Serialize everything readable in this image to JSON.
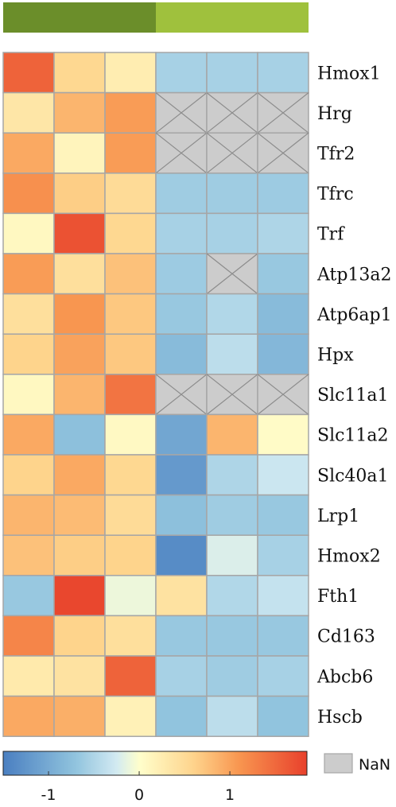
{
  "chart_data": {
    "type": "heatmap",
    "column_groups": [
      {
        "columns": [
          0,
          1,
          2
        ],
        "color": "#6b8e2a"
      },
      {
        "columns": [
          3,
          4,
          5
        ],
        "color": "#9fc13d"
      }
    ],
    "rows": [
      "Hmox1",
      "Hrg",
      "Tfr2",
      "Tfrc",
      "Trf",
      "Atp13a2",
      "Atp6ap1",
      "Hpx",
      "Slc11a1",
      "Slc11a2",
      "Slc40a1",
      "Lrp1",
      "Hmox2",
      "Fth1",
      "Cd163",
      "Abcb6",
      "Hscb"
    ],
    "values": [
      [
        1.55,
        0.55,
        0.25,
        -0.55,
        -0.55,
        -0.55
      ],
      [
        0.35,
        0.85,
        1.05,
        null,
        null,
        null
      ],
      [
        0.95,
        0.15,
        1.05,
        null,
        null,
        null
      ],
      [
        1.15,
        0.65,
        0.5,
        -0.6,
        -0.6,
        -0.62
      ],
      [
        0.1,
        1.7,
        0.55,
        -0.55,
        -0.55,
        -0.5
      ],
      [
        1.05,
        0.45,
        0.75,
        -0.62,
        null,
        -0.65
      ],
      [
        0.45,
        1.1,
        0.7,
        -0.65,
        -0.48,
        -0.8
      ],
      [
        0.6,
        1.0,
        0.7,
        -0.8,
        -0.4,
        -0.85
      ],
      [
        0.1,
        0.85,
        1.4,
        null,
        null,
        null
      ],
      [
        0.95,
        -0.75,
        0.08,
        -1.05,
        0.85,
        0.05
      ],
      [
        0.6,
        0.95,
        0.55,
        -1.2,
        -0.5,
        -0.3
      ],
      [
        0.85,
        0.8,
        0.5,
        -0.75,
        -0.6,
        -0.65
      ],
      [
        0.75,
        0.65,
        0.6,
        -1.35,
        -0.2,
        -0.55
      ],
      [
        -0.65,
        1.8,
        -0.1,
        0.4,
        -0.48,
        -0.35
      ],
      [
        1.25,
        0.6,
        0.45,
        -0.65,
        -0.65,
        -0.65
      ],
      [
        0.3,
        0.4,
        1.55,
        -0.55,
        -0.6,
        -0.55
      ],
      [
        0.95,
        0.9,
        0.2,
        -0.7,
        -0.4,
        -0.7
      ]
    ],
    "colorbar": {
      "ticks": [
        -1,
        0,
        1
      ],
      "range": [
        -1.5,
        1.85
      ],
      "low_color": "#4a7fc1",
      "mid_color": "#ffffcc",
      "high_color": "#e8412c"
    },
    "nan_color": "#cccccc",
    "nan_label": "NaN",
    "grid": true
  }
}
